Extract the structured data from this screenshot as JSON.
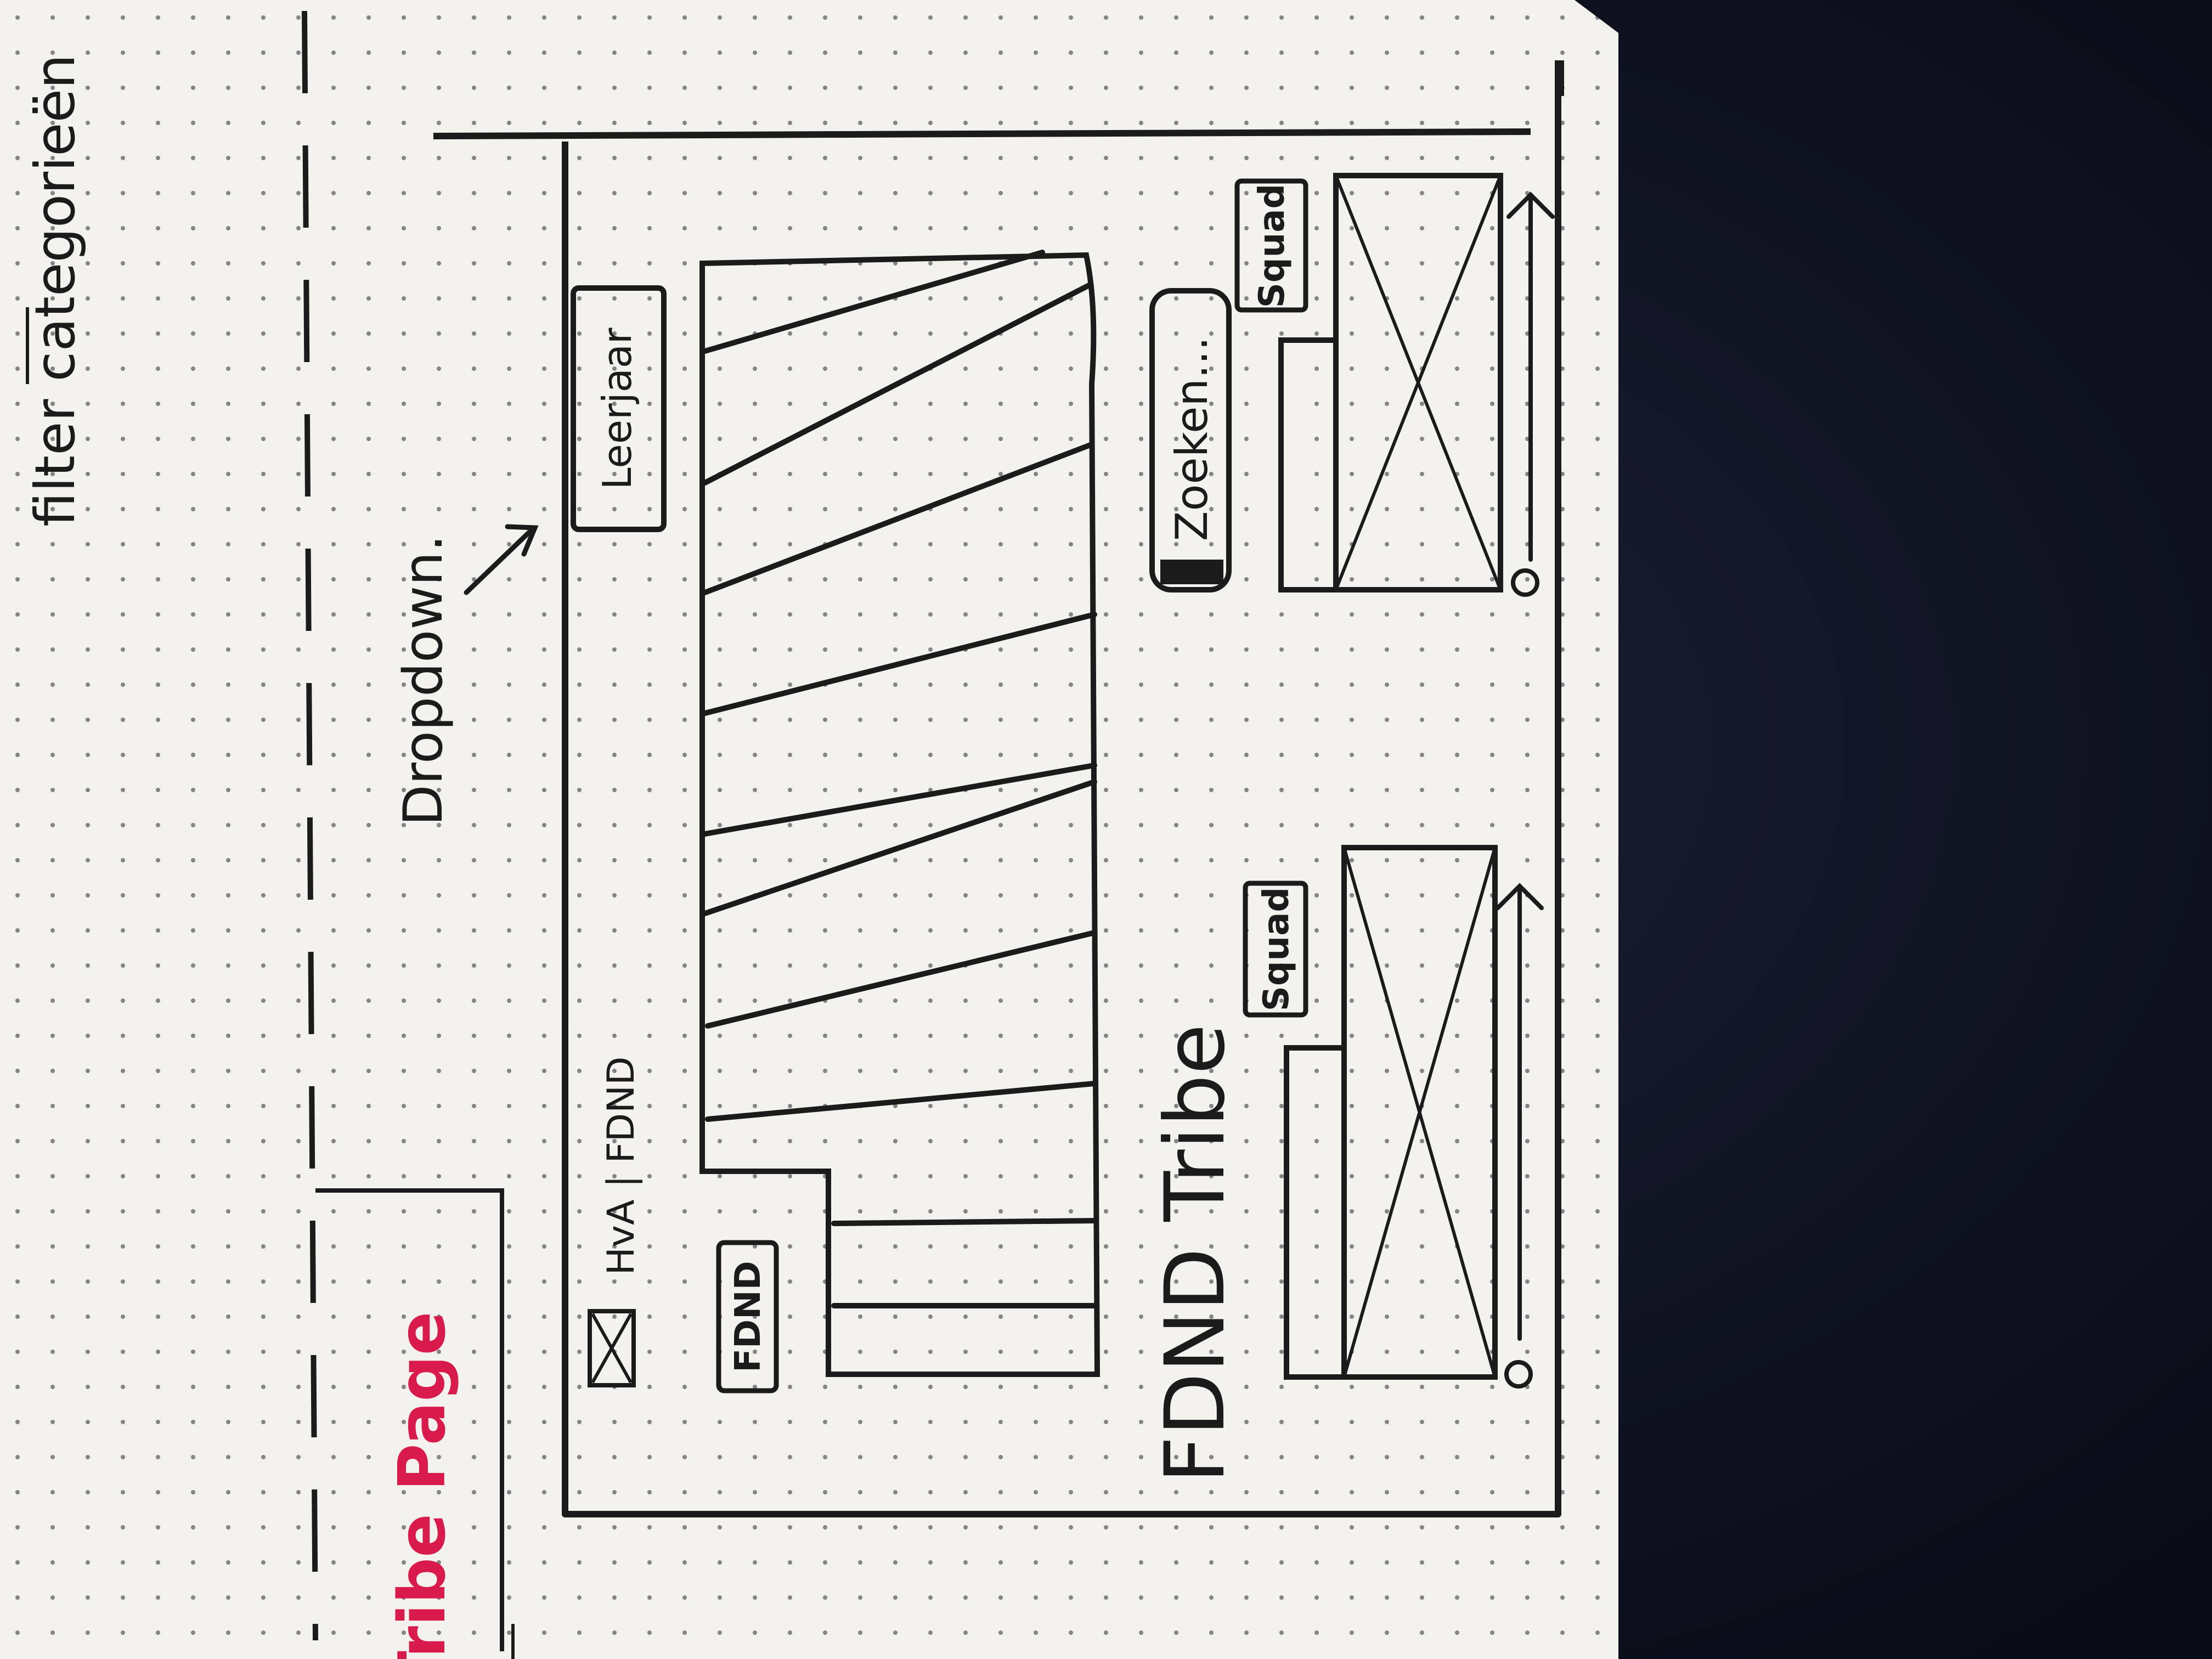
{
  "sketch": {
    "labels": {
      "page_title": "Tribe Page",
      "brand": "HvA | FDND",
      "dropdown_note": "Dropdown.",
      "filter_note": "filter categorieën",
      "year_button": "Leerjaar",
      "fdnd_tag": "FDND",
      "section_title": "FDND Tribe",
      "search_field": "Zoeken...",
      "card_1_tag": "Squad",
      "card_2_tag": "Squad"
    },
    "colors": {
      "paper": "#f4f2ee",
      "ink": "#1b1b1b",
      "highlight": "#d81b4a",
      "fabric": "#0e1220"
    }
  }
}
